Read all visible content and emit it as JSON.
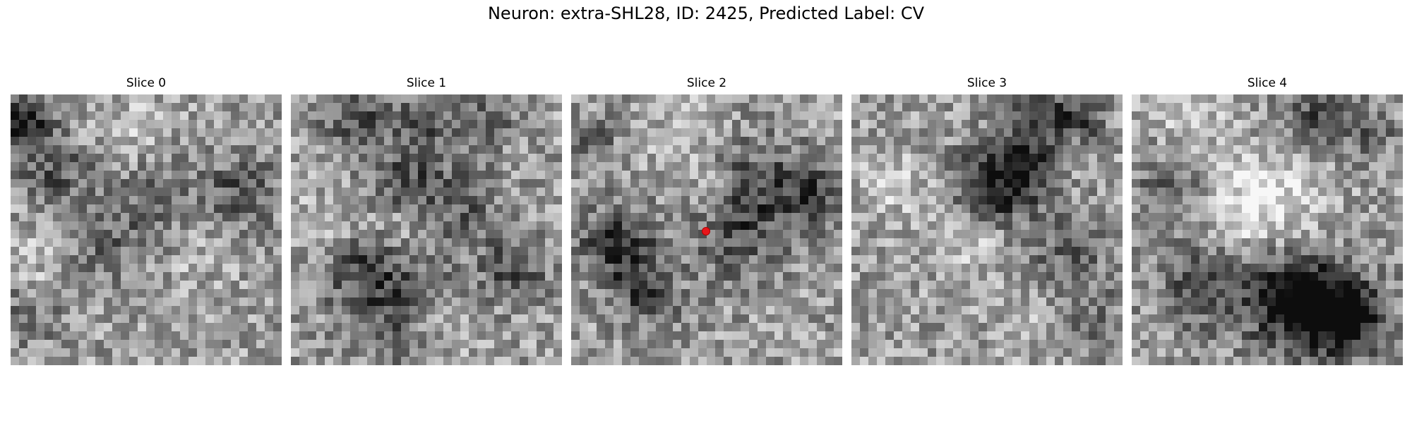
{
  "figure": {
    "title": "Neuron: extra-SHL28, ID: 2425, Predicted Label: CV"
  },
  "slices": [
    {
      "title": "Slice 0"
    },
    {
      "title": "Slice 1"
    },
    {
      "title": "Slice 2"
    },
    {
      "title": "Slice 3"
    },
    {
      "title": "Slice 4"
    }
  ],
  "marker": {
    "slice_index": 2,
    "color": "#e8161b"
  }
}
